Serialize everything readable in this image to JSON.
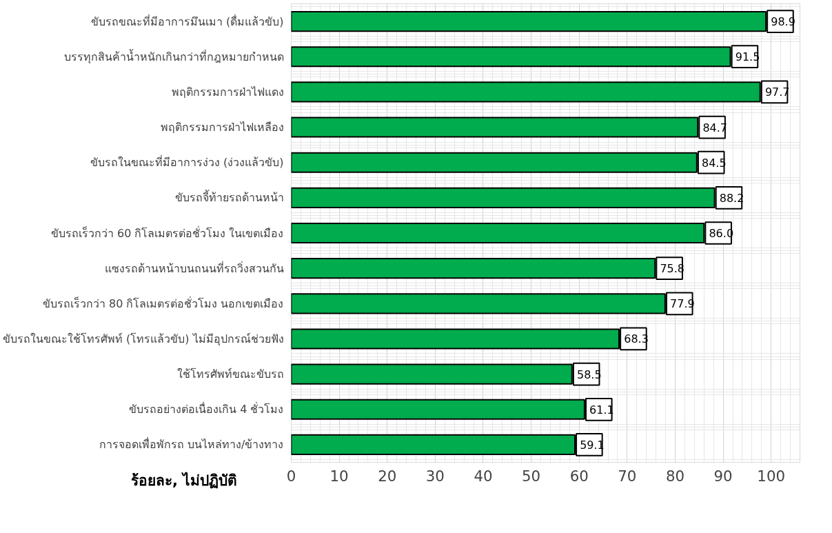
{
  "chart_data": {
    "type": "bar",
    "orientation": "horizontal",
    "xlabel": "ร้อยละ, ไม่ปฏิบัติ",
    "categories": [
      "ขับรถขณะที่มีอาการมึนเมา (ดื่มแล้วขับ)",
      "บรรทุกสินค้าน้ำหนักเกินกว่าที่กฎหมายกำหนด",
      "พฤติกรรมการฝ่าไฟแดง",
      "พฤติกรรมการฝ่าไฟเหลือง",
      "ขับรถในขณะที่มีอาการง่วง (ง่วงแล้วขับ)",
      "ขับรถจี้ท้ายรถด้านหน้า",
      "ขับรถเร็วกว่า 60 กิโลเมตรต่อชั่วโมง ในเขตเมือง",
      "แซงรถด้านหน้าบนถนนที่รถวิ่งสวนกัน",
      "ขับรถเร็วกว่า 80 กิโลเมตรต่อชั่วโมง นอกเขตเมือง",
      "ขับรถในขณะใช้โทรศัพท์ (โทรแล้วขับ) ไม่มีอุปกรณ์ช่วยฟัง",
      "ใช้โทรศัพท์ขณะขับรถ",
      "ขับรถอย่างต่อเนื่องเกิน 4 ชั่วโมง",
      "การจอดเพื่อพักรถ บนไหล่ทาง/ข้างทาง"
    ],
    "values": [
      98.9,
      91.5,
      97.7,
      84.7,
      84.5,
      88.2,
      86.0,
      75.8,
      77.9,
      68.3,
      58.5,
      61.1,
      59.1
    ],
    "value_labels": [
      "98.9",
      "91.5",
      "97.7",
      "84.7",
      "84.5",
      "88.2",
      "86.0",
      "75.8",
      "77.9",
      "68.3",
      "58.5",
      "61.1",
      "59.1"
    ],
    "color": "#00ac4e",
    "xlim": [
      0,
      106
    ],
    "xticks": [
      0,
      10,
      20,
      30,
      40,
      50,
      60,
      70,
      80,
      90,
      100
    ],
    "grid": true
  }
}
